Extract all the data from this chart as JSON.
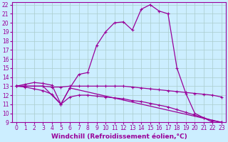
{
  "bg_color": "#cceeff",
  "line_color": "#990099",
  "xlim": [
    -0.5,
    23.5
  ],
  "ylim": [
    9,
    22.3
  ],
  "xticks": [
    0,
    1,
    2,
    3,
    4,
    5,
    6,
    7,
    8,
    9,
    10,
    11,
    12,
    13,
    14,
    15,
    16,
    17,
    18,
    19,
    20,
    21,
    22,
    23
  ],
  "yticks": [
    9,
    10,
    11,
    12,
    13,
    14,
    15,
    16,
    17,
    18,
    19,
    20,
    21,
    22
  ],
  "grid_color": "#aacccc",
  "xlabel": "Windchill (Refroidissement éolien,°C)",
  "xlabel_fontsize": 6.5,
  "tick_fontsize": 5.5,
  "marker_size": 3,
  "lw": 0.9,
  "curve1_x": [
    0,
    1,
    2,
    3,
    4,
    5,
    6,
    7,
    8,
    9,
    10,
    11,
    12,
    13,
    14,
    15,
    16,
    17,
    18,
    19,
    20,
    21,
    22,
    23
  ],
  "curve1_y": [
    13,
    13.2,
    13.4,
    13.3,
    13.1,
    11.0,
    12.8,
    14.3,
    14.5,
    17.5,
    19.0,
    20.0,
    20.1,
    19.2,
    21.5,
    22.0,
    21.3,
    21.0,
    15.0,
    12.2,
    10.0,
    9.5,
    9.0,
    9.0
  ],
  "curve2_x": [
    0,
    1,
    2,
    3,
    4,
    5,
    6,
    7,
    8,
    9,
    10,
    11,
    12,
    13,
    14,
    15,
    16,
    17,
    18,
    19,
    20,
    21,
    22,
    23
  ],
  "curve2_y": [
    13.0,
    13.0,
    13.0,
    13.0,
    12.9,
    12.9,
    13.0,
    13.0,
    13.0,
    13.0,
    13.0,
    13.0,
    13.0,
    12.9,
    12.8,
    12.7,
    12.6,
    12.5,
    12.4,
    12.3,
    12.2,
    12.1,
    12.0,
    11.8
  ],
  "curve3_x": [
    0,
    1,
    2,
    3,
    4,
    5,
    6,
    7,
    8,
    9,
    10,
    11,
    12,
    13,
    14,
    15,
    16,
    17,
    18,
    19,
    20,
    21,
    22,
    23
  ],
  "curve3_y": [
    13.0,
    12.9,
    12.7,
    12.5,
    12.1,
    11.0,
    11.8,
    12.0,
    12.0,
    11.9,
    11.8,
    11.7,
    11.6,
    11.4,
    11.3,
    11.1,
    10.9,
    10.7,
    10.4,
    10.1,
    9.8,
    9.5,
    9.2,
    9.0
  ],
  "curve4_x": [
    0,
    3,
    5,
    6,
    23
  ],
  "curve4_y": [
    13.0,
    13.0,
    11.0,
    12.8,
    9.0
  ]
}
